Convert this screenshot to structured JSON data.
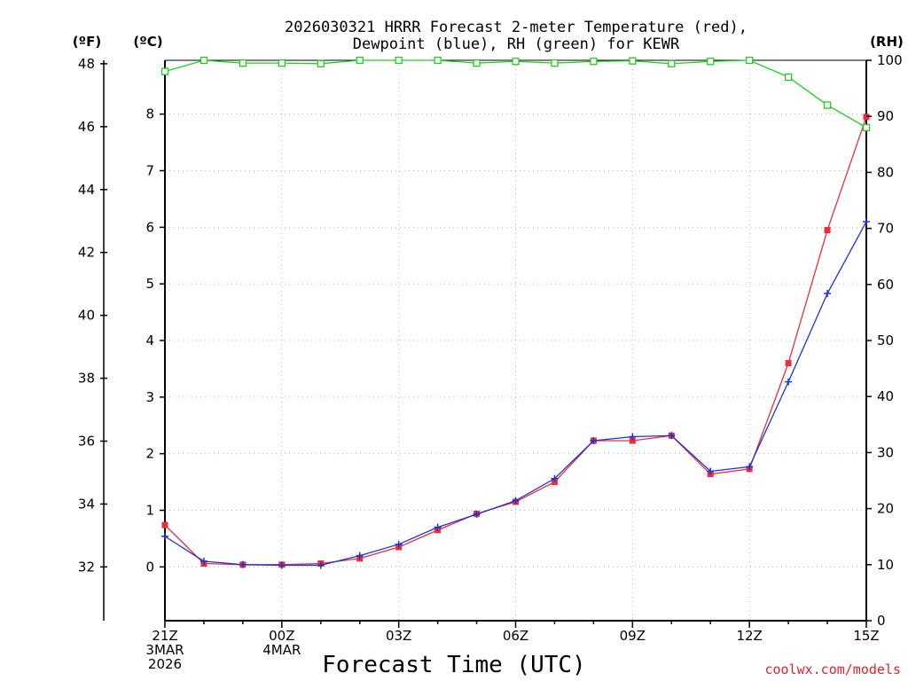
{
  "chart_data": {
    "type": "line",
    "title": [
      "2026030321 HRRR Forecast 2-meter Temperature (red),",
      "Dewpoint (blue), RH (green) for KEWR"
    ],
    "xlabel": "Forecast Time (UTC)",
    "credit": "coolwx.com/models",
    "unit_labels": {
      "fahrenheit": "(ºF)",
      "celsius": "(ºC)",
      "rh": "(RH)"
    },
    "x_hours": [
      0,
      1,
      2,
      3,
      4,
      5,
      6,
      7,
      8,
      9,
      10,
      11,
      12,
      13,
      14,
      15,
      16,
      17,
      18
    ],
    "x_ticks": [
      {
        "hour": 0,
        "lines": [
          "21Z",
          "3MAR",
          "2026"
        ]
      },
      {
        "hour": 3,
        "lines": [
          "00Z",
          "4MAR"
        ]
      },
      {
        "hour": 6,
        "lines": [
          "03Z"
        ]
      },
      {
        "hour": 9,
        "lines": [
          "06Z"
        ]
      },
      {
        "hour": 12,
        "lines": [
          "09Z"
        ]
      },
      {
        "hour": 15,
        "lines": [
          "12Z"
        ]
      },
      {
        "hour": 18,
        "lines": [
          "15Z"
        ]
      }
    ],
    "ylim_celsius": [
      -0.95,
      8.95
    ],
    "ylim_fahrenheit": [
      30.29,
      48.11
    ],
    "ylim_rh": [
      0,
      100
    ],
    "yticks_celsius": [
      0,
      1,
      2,
      3,
      4,
      5,
      6,
      7,
      8
    ],
    "yticks_fahrenheit": [
      32,
      34,
      36,
      38,
      40,
      42,
      44,
      46,
      48
    ],
    "yticks_rh": [
      0,
      10,
      20,
      30,
      40,
      50,
      60,
      70,
      80,
      90,
      100
    ],
    "grid": true,
    "series": [
      {
        "name": "Temperature",
        "unit": "C",
        "color": "#e8303a",
        "marker": "square",
        "values": [
          0.74,
          0.06,
          0.04,
          0.04,
          0.06,
          0.15,
          0.35,
          0.65,
          0.94,
          1.15,
          1.5,
          2.23,
          2.23,
          2.32,
          1.64,
          1.73,
          3.6,
          5.95,
          7.95
        ]
      },
      {
        "name": "Dewpoint",
        "unit": "C",
        "color": "#2030d8",
        "marker": "plus",
        "values": [
          0.54,
          0.1,
          0.04,
          0.03,
          0.03,
          0.2,
          0.4,
          0.7,
          0.93,
          1.17,
          1.56,
          2.23,
          2.3,
          2.32,
          1.69,
          1.77,
          3.27,
          4.83,
          6.1
        ]
      },
      {
        "name": "Relative Humidity",
        "unit": "RH",
        "color": "#22cc22",
        "marker": "open-square",
        "values": [
          98,
          100,
          99.5,
          99.5,
          99.4,
          100,
          100,
          100,
          99.5,
          99.8,
          99.5,
          99.8,
          99.9,
          99.4,
          99.8,
          100,
          97,
          92,
          88
        ]
      }
    ]
  }
}
